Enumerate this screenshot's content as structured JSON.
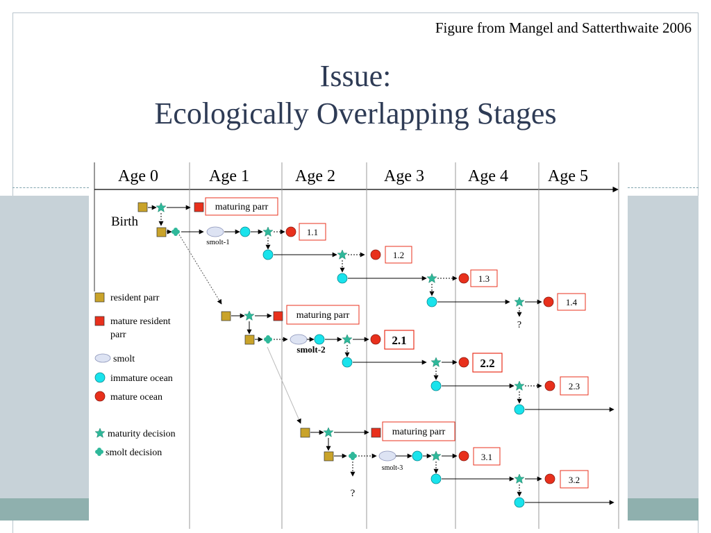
{
  "caption": "Figure from Mangel and Satterthwaite 2006",
  "title": {
    "line1": "Issue:",
    "line2": "Ecologically Overlapping Stages"
  },
  "ages": [
    "Age 0",
    "Age 1",
    "Age 2",
    "Age 3",
    "Age 4",
    "Age 5"
  ],
  "labels": {
    "birth": "Birth",
    "maturing_parr": "maturing parr",
    "smolt1": "smolt-1",
    "smolt2": "smolt-2",
    "smolt3": "smolt-3",
    "question": "?"
  },
  "outcomes": [
    "1.1",
    "1.2",
    "1.3",
    "1.4",
    "2.1",
    "2.2",
    "2.3",
    "3.1",
    "3.2"
  ],
  "legend": [
    {
      "shape": "square-gold",
      "line1": "resident parr",
      "line2": ""
    },
    {
      "shape": "square-red",
      "line1": "mature resident",
      "line2": "parr"
    },
    {
      "shape": "ellipse",
      "line1": "smolt",
      "line2": ""
    },
    {
      "shape": "circle-cyan",
      "line1": "immature ocean",
      "line2": ""
    },
    {
      "shape": "circle-red",
      "line1": "mature ocean",
      "line2": ""
    },
    {
      "shape": "star",
      "line1": "maturity decision",
      "line2": ""
    },
    {
      "shape": "cross",
      "line1": "smolt decision",
      "line2": ""
    }
  ],
  "colors": {
    "gold": "#c9a32a",
    "red": "#e8301c",
    "cyan": "#19e3ec",
    "teal": "#2fb89a",
    "smolt": "#dde3f3",
    "title": "#2e3b55"
  }
}
